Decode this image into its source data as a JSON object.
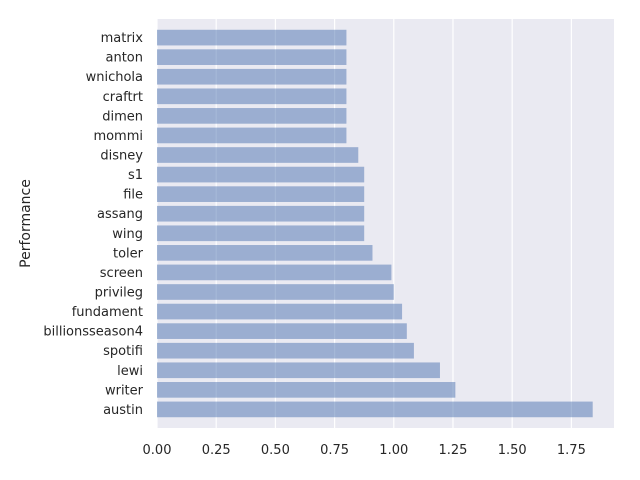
{
  "chart_data": {
    "type": "bar",
    "orientation": "horizontal",
    "ylabel": "Performance",
    "xlabel": "",
    "xlim": [
      0,
      1.93
    ],
    "xticks": [
      "0.00",
      "0.25",
      "0.50",
      "0.75",
      "1.00",
      "1.25",
      "1.50",
      "1.75"
    ],
    "grid": true,
    "bar_color": "#4c72b0",
    "bar_opacity": 0.5,
    "background_color": "#eaeaf2",
    "categories": [
      "matrix",
      "anton",
      "wnichola",
      "craftrt",
      "dimen",
      "mommi",
      "disney",
      "s1",
      "file",
      "assang",
      "wing",
      "toler",
      "screen",
      "privileg",
      "fundament",
      "billionsseason4",
      "spotifi",
      "lewi",
      "writer",
      "austin"
    ],
    "values": [
      0.8,
      0.8,
      0.8,
      0.8,
      0.8,
      0.8,
      0.85,
      0.875,
      0.875,
      0.875,
      0.875,
      0.91,
      0.99,
      1.0,
      1.035,
      1.055,
      1.085,
      1.195,
      1.26,
      1.84
    ]
  }
}
